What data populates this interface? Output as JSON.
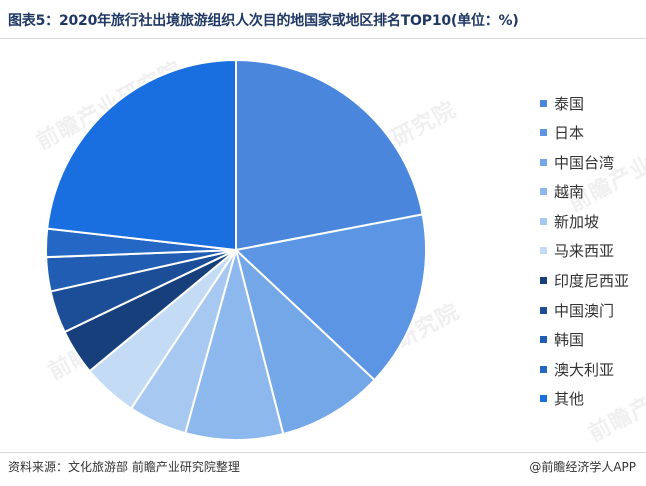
{
  "title": "图表5：2020年旅行社出境旅游组织人次目的地国家或地区排名TOP10(单位：%)",
  "watermark": "前瞻产业研究院",
  "source": "资料来源：文化旅游部 前瞻产业研究院整理",
  "brand": "@前瞻经济学人APP",
  "chart_data": {
    "type": "pie",
    "title": "图表5：2020年旅行社出境旅游组织人次目的地国家或地区排名TOP10(单位：%)",
    "legend_position": "right",
    "start_angle_deg": 0,
    "direction": "clockwise",
    "slices": [
      {
        "label": "泰国",
        "value": 22.0,
        "color": "#4a86dc"
      },
      {
        "label": "日本",
        "value": 15.0,
        "color": "#5b95e3"
      },
      {
        "label": "中国台湾",
        "value": 9.0,
        "color": "#74a7e8"
      },
      {
        "label": "越南",
        "value": 8.3,
        "color": "#8db8ed"
      },
      {
        "label": "新加坡",
        "value": 5.0,
        "color": "#a7c8f1"
      },
      {
        "label": "马来西亚",
        "value": 4.7,
        "color": "#c4dbf6"
      },
      {
        "label": "印度尼西亚",
        "value": 3.9,
        "color": "#163f7c"
      },
      {
        "label": "中国澳门",
        "value": 3.6,
        "color": "#1c4e98"
      },
      {
        "label": "韩国",
        "value": 2.9,
        "color": "#215db3"
      },
      {
        "label": "澳大利亚",
        "value": 2.4,
        "color": "#2567c4"
      },
      {
        "label": "其他",
        "value": 23.2,
        "color": "#1a6fe0"
      }
    ]
  }
}
